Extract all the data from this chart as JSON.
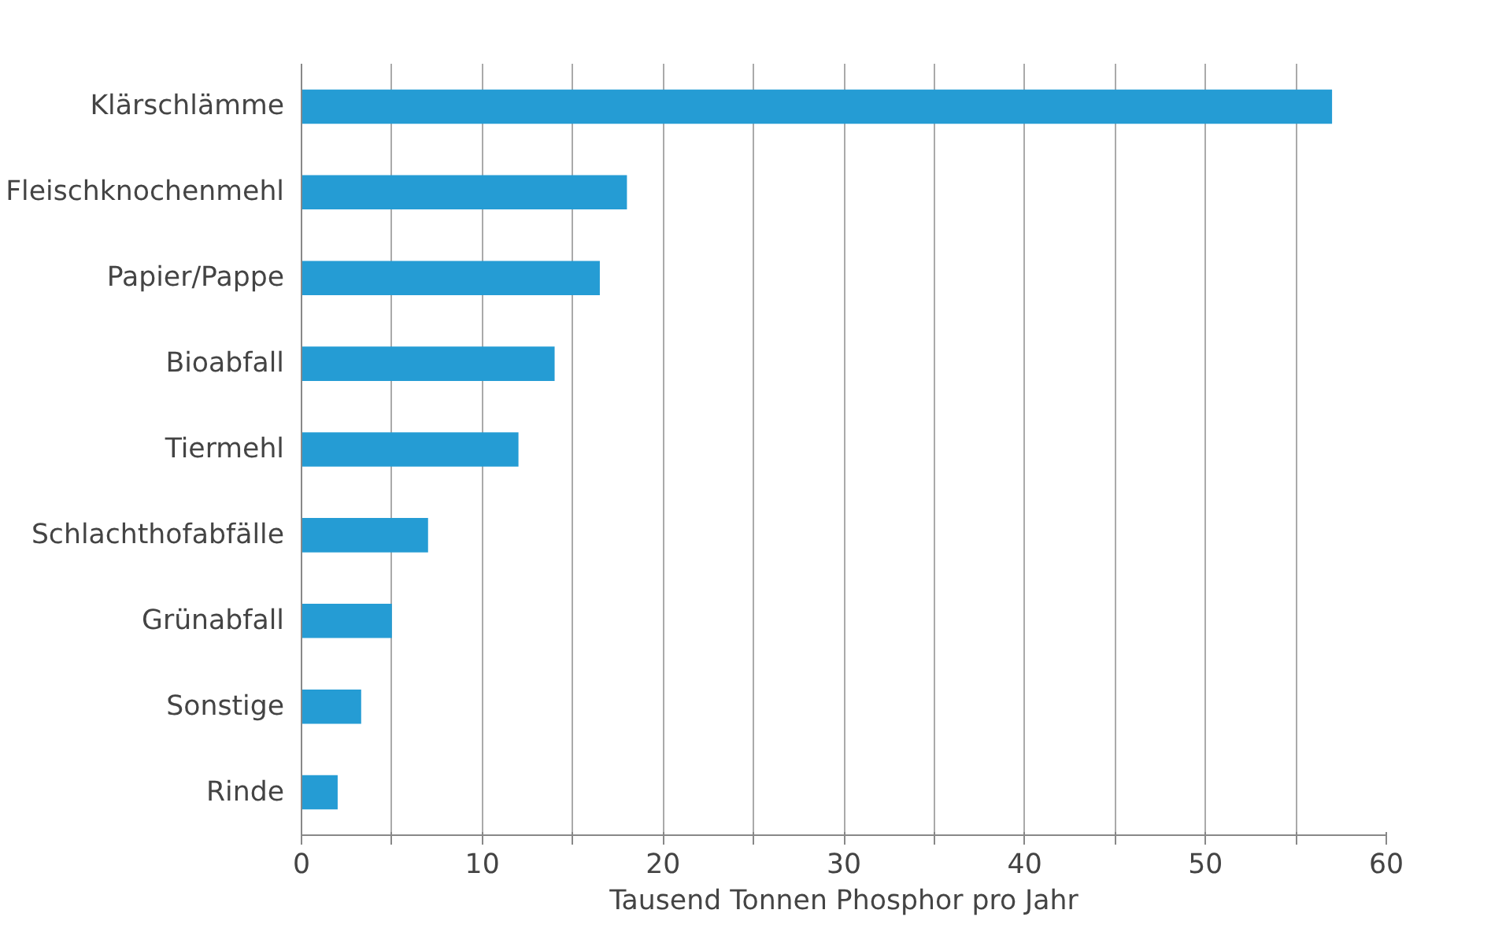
{
  "chart_data": {
    "type": "bar",
    "orientation": "horizontal",
    "categories": [
      "Klärschlämme",
      "Fleischknochenmehl",
      "Papier/Pappe",
      "Bioabfall",
      "Tiermehl",
      "Schlachthofabfälle",
      "Grünabfall",
      "Sonstige",
      "Rinde"
    ],
    "values": [
      57,
      18,
      16.5,
      14,
      12,
      7,
      5,
      3.3,
      2
    ],
    "color": "#259cd4",
    "xlabel": "Tausend Tonnen Phosphor pro Jahr",
    "xlim": [
      0,
      60
    ],
    "xticks": [
      0,
      {
        "value": 5,
        "label": null
      },
      10,
      {
        "value": 15,
        "label": null
      },
      20,
      {
        "value": 25,
        "label": null
      },
      30,
      {
        "value": 35,
        "label": null
      },
      40,
      {
        "value": 45,
        "label": null
      },
      50,
      {
        "value": 55,
        "label": null
      },
      60
    ],
    "grid": "x"
  }
}
